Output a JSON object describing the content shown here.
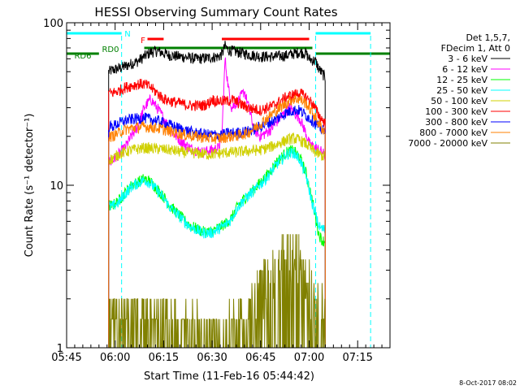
{
  "chart_data": {
    "type": "line",
    "title": "HESSI Observing Summary Count Rates",
    "xlabel": "Start Time (11-Feb-16 05:44:42)",
    "ylabel": "Count Rate (s⁻¹ detector⁻¹)",
    "yscale": "log",
    "ylim": [
      1,
      100
    ],
    "xlim_minutes": [
      0,
      100
    ],
    "x_ticks": [
      "05:45",
      "06:00",
      "06:15",
      "06:30",
      "06:45",
      "07:00",
      "07:15"
    ],
    "y_ticks": [
      "1",
      "10",
      "100"
    ],
    "legend_header": [
      "Det 1,5,7,",
      "FDecim 1, Att 0"
    ],
    "legend_position": "right",
    "footer": "8-Oct-2017 08:02",
    "flags": [
      {
        "label": "N",
        "color": "#00ffff",
        "segments": [
          [
            0,
            17
          ],
          [
            77,
            94
          ]
        ]
      },
      {
        "label": "F",
        "color": "#ff0000",
        "segments": [
          [
            25,
            30
          ],
          [
            48,
            75
          ]
        ]
      },
      {
        "label": "RD0",
        "color": "#008000",
        "segments": [
          [
            24,
            76
          ]
        ]
      },
      {
        "label": "RD6",
        "color": "#008000",
        "segments": [
          [
            0,
            10
          ],
          [
            77,
            100
          ]
        ]
      }
    ],
    "series": [
      {
        "name": "3 - 6 keV",
        "color": "#000000",
        "x": [
          13,
          14,
          17,
          20,
          22,
          24,
          26,
          28,
          30,
          32,
          35,
          38,
          40,
          44,
          47,
          48,
          49,
          50,
          53,
          56,
          60,
          64,
          68,
          72,
          74,
          75,
          77,
          78,
          79,
          80
        ],
        "y": [
          50,
          51,
          53,
          56,
          58,
          62,
          66,
          67,
          65,
          63,
          62,
          61,
          60,
          61,
          62,
          64,
          72,
          68,
          66,
          64,
          62,
          62,
          63,
          66,
          65,
          60,
          58,
          52,
          49,
          46
        ]
      },
      {
        "name": "6 - 12 keV",
        "color": "#ff00ff",
        "x": [
          14,
          16,
          18,
          20,
          22,
          24,
          26,
          28,
          30,
          32,
          35,
          38,
          42,
          45,
          47,
          48,
          49,
          50,
          51,
          53,
          55,
          58,
          60,
          63,
          66,
          69,
          72,
          74,
          75,
          77,
          79,
          80
        ],
        "y": [
          14,
          15.5,
          17,
          20,
          23,
          30,
          34,
          30,
          26,
          22,
          19,
          17,
          16,
          16.5,
          17,
          20,
          60,
          40,
          30,
          33,
          38,
          22,
          20,
          22,
          26,
          30,
          26,
          21,
          18,
          17,
          16,
          15
        ]
      },
      {
        "name": "12 - 25 keV",
        "color": "#00ff00",
        "x": [
          14,
          16,
          18,
          20,
          22,
          24,
          26,
          28,
          30,
          32,
          35,
          38,
          42,
          45,
          47,
          49,
          51,
          53,
          55,
          58,
          62,
          65,
          68,
          70,
          72,
          74,
          76,
          78,
          79,
          80
        ],
        "y": [
          7.5,
          8,
          9,
          10,
          10.5,
          11,
          10.5,
          9.5,
          8.5,
          7.5,
          6.5,
          5.7,
          5.2,
          5.2,
          5.5,
          5.8,
          6.3,
          7.5,
          8.3,
          9.5,
          11.5,
          14,
          16,
          16.5,
          15,
          12,
          8,
          5,
          4.6,
          4.5
        ]
      },
      {
        "name": "25 - 50 keV",
        "color": "#00ffff",
        "x": [
          14,
          16,
          18,
          20,
          22,
          24,
          26,
          28,
          30,
          32,
          35,
          38,
          42,
          45,
          47,
          49,
          51,
          53,
          55,
          58,
          62,
          65,
          68,
          70,
          72,
          74,
          76,
          78,
          79,
          80
        ],
        "y": [
          7.4,
          7.8,
          8.8,
          9.8,
          10.3,
          10.8,
          10.3,
          9.3,
          8.3,
          7.3,
          6.4,
          5.6,
          5.1,
          5.1,
          5.4,
          5.7,
          6.2,
          7.4,
          8.2,
          9.3,
          11.2,
          13.5,
          15.5,
          16,
          14.5,
          11.5,
          7.7,
          5.6,
          5.4,
          5.3
        ]
      },
      {
        "name": "50 - 100 keV",
        "color": "#d0d000",
        "x": [
          14,
          16,
          18,
          20,
          24,
          28,
          32,
          36,
          40,
          44,
          48,
          50,
          52,
          56,
          60,
          64,
          68,
          70,
          72,
          74,
          76,
          78,
          80
        ],
        "y": [
          14.5,
          15.5,
          16,
          16.5,
          17,
          16.8,
          16.5,
          16,
          15.8,
          15.5,
          15.8,
          16,
          16,
          16.3,
          16.5,
          17.5,
          19,
          19.5,
          19,
          18,
          16.5,
          15.5,
          15
        ]
      },
      {
        "name": "100 - 300 keV",
        "color": "#ff0000",
        "x": [
          14,
          16,
          18,
          20,
          22,
          24,
          26,
          28,
          30,
          32,
          35,
          38,
          42,
          44,
          45,
          46,
          48,
          50,
          51,
          52,
          56,
          60,
          64,
          68,
          70,
          72,
          74,
          76,
          78,
          80
        ],
        "y": [
          37,
          38,
          40,
          41,
          42,
          42,
          40,
          37,
          34,
          33,
          32,
          31,
          31,
          32,
          34,
          33,
          33,
          33,
          34,
          33,
          30,
          29,
          31,
          35,
          36,
          37,
          35,
          32,
          27,
          24
        ]
      },
      {
        "name": "300 - 800 keV",
        "color": "#0000ff",
        "x": [
          14,
          16,
          18,
          20,
          24,
          28,
          32,
          36,
          40,
          44,
          48,
          50,
          52,
          56,
          60,
          64,
          68,
          70,
          72,
          74,
          76,
          78,
          80
        ],
        "y": [
          23,
          24,
          25,
          25.5,
          26,
          25,
          23.5,
          22,
          21,
          20.5,
          20.5,
          21,
          21,
          21.5,
          23,
          25,
          28,
          29,
          29,
          27,
          25,
          23,
          21
        ]
      },
      {
        "name": "800 - 7000 keV",
        "color": "#ff8000",
        "x": [
          14,
          16,
          18,
          20,
          24,
          28,
          32,
          36,
          40,
          44,
          48,
          50,
          52,
          56,
          60,
          64,
          68,
          70,
          72,
          74,
          76,
          78,
          80
        ],
        "y": [
          20,
          21,
          22,
          22.5,
          23,
          22.5,
          21.5,
          20.5,
          20,
          19.5,
          19.5,
          20,
          20,
          21,
          24,
          28,
          32,
          34,
          34,
          32,
          28,
          24,
          21
        ]
      },
      {
        "name": "7000 - 20000 keV",
        "color": "#808000",
        "x": [
          13,
          16,
          20,
          25,
          30,
          35,
          40,
          45,
          50,
          55,
          58,
          60,
          62,
          65,
          67,
          69,
          71,
          73,
          74,
          75,
          76,
          78,
          80
        ],
        "y": [
          1.5,
          1.5,
          1.5,
          1.5,
          1.5,
          1.2,
          1.2,
          1.2,
          1.2,
          1.5,
          1.8,
          2.2,
          2.6,
          3,
          3.3,
          3.5,
          3.5,
          3.3,
          3,
          2.7,
          2.2,
          1.6,
          1.5
        ]
      }
    ]
  }
}
